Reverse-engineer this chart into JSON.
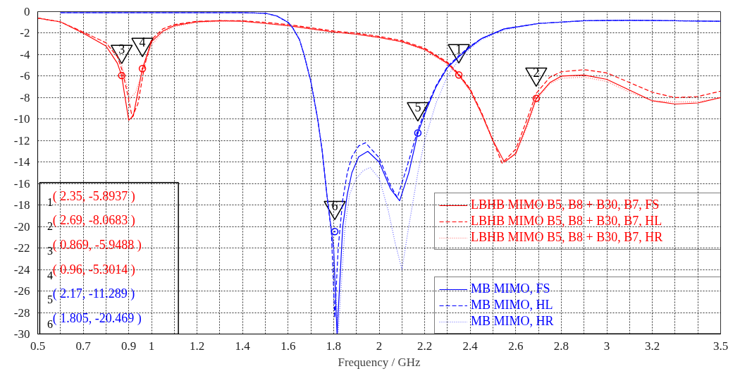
{
  "chart_data": {
    "type": "line",
    "xlabel": "Frequency / GHz",
    "xlim": [
      0.5,
      3.5
    ],
    "ylim": [
      -30,
      0
    ],
    "xticks": [
      0.5,
      {
        "value": 0.6,
        "label": null
      },
      0.7,
      {
        "value": 0.8,
        "label": null
      },
      0.9,
      1,
      {
        "value": 1.1,
        "label": null
      },
      1.2,
      {
        "value": 1.3,
        "label": null
      },
      1.4,
      {
        "value": 1.5,
        "label": null
      },
      1.6,
      {
        "value": 1.7,
        "label": null
      },
      1.8,
      {
        "value": 1.9,
        "label": null
      },
      2,
      {
        "value": 2.1,
        "label": null
      },
      2.2,
      {
        "value": 2.3,
        "label": null
      },
      2.4,
      {
        "value": 2.5,
        "label": null
      },
      2.6,
      {
        "value": 2.7,
        "label": null
      },
      2.8,
      {
        "value": 2.9,
        "label": null
      },
      3,
      {
        "value": 3.1,
        "label": null
      },
      3.2,
      {
        "value": 3.3,
        "label": null
      },
      {
        "value": 3.4,
        "label": null
      },
      3.5
    ],
    "yticks": [
      0,
      -2,
      -4,
      -6,
      -8,
      -10,
      -12,
      -14,
      -16,
      -18,
      -20,
      -22,
      -24,
      -26,
      -28,
      -30
    ],
    "grid": true,
    "legend": "bottom right",
    "series": [
      {
        "name": "LBHB MIMO B5, B8 + B30, B7, FS",
        "color": "#ff0000",
        "line_style": "solid",
        "x": [
          0.5,
          0.6,
          0.7,
          0.8,
          0.85,
          0.869,
          0.88,
          0.9,
          0.92,
          0.96,
          1.0,
          1.05,
          1.1,
          1.2,
          1.3,
          1.4,
          1.5,
          1.6,
          1.7,
          1.8,
          1.9,
          2.0,
          2.1,
          2.2,
          2.3,
          2.35,
          2.4,
          2.45,
          2.5,
          2.55,
          2.6,
          2.65,
          2.69,
          2.75,
          2.8,
          2.9,
          3.0,
          3.1,
          3.2,
          3.3,
          3.4,
          3.5
        ],
        "values": [
          -0.6,
          -0.95,
          -2.0,
          -3.2,
          -4.8,
          -5.95,
          -7.5,
          -10.1,
          -9.7,
          -5.3,
          -2.8,
          -1.8,
          -1.3,
          -0.95,
          -0.85,
          -0.9,
          -1.1,
          -1.3,
          -1.6,
          -1.9,
          -2.1,
          -2.4,
          -2.8,
          -3.5,
          -4.8,
          -5.89,
          -7.3,
          -9.5,
          -12.0,
          -14.0,
          -13.2,
          -10.5,
          -8.07,
          -6.6,
          -6.0,
          -5.9,
          -6.3,
          -7.3,
          -8.3,
          -8.6,
          -8.5,
          -8.0
        ]
      },
      {
        "name": "LBHB MIMO B5, B8 + B30, B7, HL",
        "color": "#ff0000",
        "line_style": "dashed",
        "x": [
          0.5,
          0.6,
          0.7,
          0.8,
          0.85,
          0.87,
          0.89,
          0.915,
          0.94,
          0.97,
          1.0,
          1.05,
          1.1,
          1.2,
          1.3,
          1.4,
          1.5,
          1.6,
          1.7,
          1.8,
          1.9,
          2.0,
          2.1,
          2.2,
          2.3,
          2.35,
          2.4,
          2.45,
          2.5,
          2.54,
          2.6,
          2.65,
          2.69,
          2.75,
          2.8,
          2.9,
          3.0,
          3.1,
          3.2,
          3.3,
          3.4,
          3.5
        ],
        "values": [
          -0.6,
          -0.95,
          -1.9,
          -2.9,
          -4.2,
          -5.4,
          -7.2,
          -9.8,
          -8.6,
          -5.0,
          -2.6,
          -1.6,
          -1.2,
          -0.9,
          -0.85,
          -0.85,
          -1.0,
          -1.2,
          -1.5,
          -1.8,
          -2.0,
          -2.3,
          -2.7,
          -3.4,
          -4.7,
          -5.8,
          -7.2,
          -9.4,
          -12.0,
          -14.1,
          -12.8,
          -10.0,
          -7.6,
          -6.1,
          -5.6,
          -5.4,
          -5.7,
          -6.6,
          -7.5,
          -8.0,
          -7.9,
          -7.4
        ]
      },
      {
        "name": "LBHB MIMO B5, B8 + B30, B7, HR",
        "color": "#ff6666",
        "line_style": "dotted",
        "x": [
          0.5,
          0.6,
          0.7,
          0.8,
          0.85,
          0.87,
          0.89,
          0.905,
          0.93,
          0.96,
          1.0,
          1.05,
          1.1,
          1.2,
          1.3,
          1.4,
          1.5,
          1.6,
          1.7,
          1.8,
          1.9,
          2.0,
          2.1,
          2.2,
          2.3,
          2.35,
          2.4,
          2.45,
          2.5,
          2.55,
          2.6,
          2.65,
          2.69,
          2.75,
          2.8,
          2.9,
          3.0,
          3.1,
          3.2,
          3.3,
          3.4,
          3.5
        ],
        "values": [
          -0.6,
          -0.95,
          -1.9,
          -2.9,
          -4.0,
          -5.0,
          -6.7,
          -8.1,
          -7.5,
          -5.6,
          -3.1,
          -1.9,
          -1.4,
          -1.0,
          -0.9,
          -0.9,
          -1.1,
          -1.3,
          -1.6,
          -1.9,
          -2.1,
          -2.4,
          -2.8,
          -3.6,
          -4.9,
          -6.0,
          -7.4,
          -9.6,
          -12.1,
          -14.0,
          -13.3,
          -10.7,
          -8.2,
          -6.7,
          -6.2,
          -6.1,
          -6.5,
          -7.5,
          -8.3,
          -8.4,
          -8.4,
          -8.0
        ]
      },
      {
        "name": "MB MIMO, FS",
        "color": "#0000ff",
        "line_style": "solid",
        "x": [
          0.6,
          0.8,
          1.0,
          1.2,
          1.4,
          1.5,
          1.55,
          1.6,
          1.62,
          1.65,
          1.67,
          1.7,
          1.73,
          1.75,
          1.77,
          1.8,
          1.815,
          1.83,
          1.84,
          1.86,
          1.88,
          1.91,
          1.95,
          2.0,
          2.05,
          2.09,
          2.13,
          2.17,
          2.21,
          2.25,
          2.3,
          2.35,
          2.4,
          2.45,
          2.55,
          2.7,
          2.9,
          3.1,
          3.3,
          3.5
        ],
        "values": [
          -0.1,
          -0.1,
          -0.1,
          -0.1,
          -0.1,
          -0.15,
          -0.4,
          -1.0,
          -1.5,
          -2.6,
          -4.0,
          -6.5,
          -10.0,
          -13.0,
          -17.0,
          -22.0,
          -30.0,
          -24.0,
          -20.0,
          -17.0,
          -15.0,
          -13.5,
          -13.0,
          -14.0,
          -16.5,
          -17.6,
          -15.0,
          -11.3,
          -9.0,
          -7.0,
          -5.2,
          -4.2,
          -3.3,
          -2.5,
          -1.6,
          -1.1,
          -0.85,
          -0.8,
          -0.85,
          -0.9
        ]
      },
      {
        "name": "MB MIMO, HL",
        "color": "#0000ff",
        "line_style": "dashed",
        "x": [
          0.6,
          0.8,
          1.0,
          1.2,
          1.4,
          1.5,
          1.55,
          1.6,
          1.62,
          1.65,
          1.67,
          1.7,
          1.73,
          1.75,
          1.77,
          1.79,
          1.805,
          1.82,
          1.84,
          1.86,
          1.88,
          1.91,
          1.94,
          2.0,
          2.05,
          2.08,
          2.12,
          2.17,
          2.21,
          2.25,
          2.3,
          2.35,
          2.4,
          2.45,
          2.55,
          2.7,
          2.9,
          3.1,
          3.3,
          3.5
        ],
        "values": [
          -0.1,
          -0.1,
          -0.1,
          -0.1,
          -0.1,
          -0.15,
          -0.4,
          -1.0,
          -1.5,
          -2.6,
          -4.0,
          -6.5,
          -10.0,
          -13.0,
          -17.0,
          -20.5,
          -28.5,
          -22.0,
          -17.5,
          -15.0,
          -13.5,
          -12.5,
          -12.2,
          -13.6,
          -16.2,
          -17.3,
          -14.6,
          -11.0,
          -8.8,
          -6.9,
          -5.1,
          -4.1,
          -3.2,
          -2.5,
          -1.6,
          -1.1,
          -0.85,
          -0.8,
          -0.85,
          -0.9
        ]
      },
      {
        "name": "MB MIMO, HR",
        "color": "#6666ff",
        "line_style": "dotted",
        "x": [
          0.6,
          0.8,
          1.0,
          1.2,
          1.4,
          1.5,
          1.55,
          1.6,
          1.62,
          1.65,
          1.67,
          1.7,
          1.73,
          1.75,
          1.77,
          1.8,
          1.82,
          1.835,
          1.85,
          1.87,
          1.9,
          1.93,
          1.96,
          2.0,
          2.04,
          2.07,
          2.1,
          2.13,
          2.17,
          2.2,
          2.25,
          2.3,
          2.35,
          2.4,
          2.45,
          2.55,
          2.7,
          2.9,
          3.1,
          3.3,
          3.5
        ],
        "values": [
          -0.1,
          -0.1,
          -0.1,
          -0.1,
          -0.1,
          -0.15,
          -0.4,
          -1.0,
          -1.5,
          -2.6,
          -4.0,
          -6.5,
          -10.0,
          -13.0,
          -17.0,
          -22.0,
          -30.0,
          -25.0,
          -20.0,
          -17.0,
          -15.5,
          -14.8,
          -14.5,
          -15.5,
          -18.5,
          -21.5,
          -24.0,
          -20.0,
          -15.0,
          -12.0,
          -8.5,
          -6.0,
          -4.5,
          -3.4,
          -2.6,
          -1.7,
          -1.1,
          -0.85,
          -0.8,
          -0.85,
          -0.9
        ]
      },
      {
        "type": "scatter",
        "marker": "circle",
        "color": "#ff0000",
        "x": [
          2.35,
          2.69,
          0.869,
          0.96
        ],
        "values": [
          -5.8937,
          -8.0683,
          -5.9488,
          -5.3014
        ]
      },
      {
        "type": "scatter",
        "marker": "circle",
        "color": "#0000ff",
        "x": [
          2.17,
          1.805
        ],
        "values": [
          -11.289,
          -20.469
        ]
      }
    ],
    "annotations": [
      {
        "text": "1",
        "x": 2.35,
        "y": -5.8937
      },
      {
        "text": "2",
        "x": 2.69,
        "y": -8.0683
      },
      {
        "text": "3",
        "x": 0.869,
        "y": -5.9488
      },
      {
        "text": "4",
        "x": 0.96,
        "y": -5.3014
      },
      {
        "text": "5",
        "x": 2.17,
        "y": -11.289
      },
      {
        "text": "6",
        "x": 1.805,
        "y": -20.469
      },
      "( 2.35, -5.8937 )",
      "( 2.69, -8.0683 )",
      "( 0.869, -5.9488 )",
      "( 0.96, -5.3014 )",
      "( 2.17, -11.289 )",
      "( 1.805, -20.469 )"
    ]
  }
}
